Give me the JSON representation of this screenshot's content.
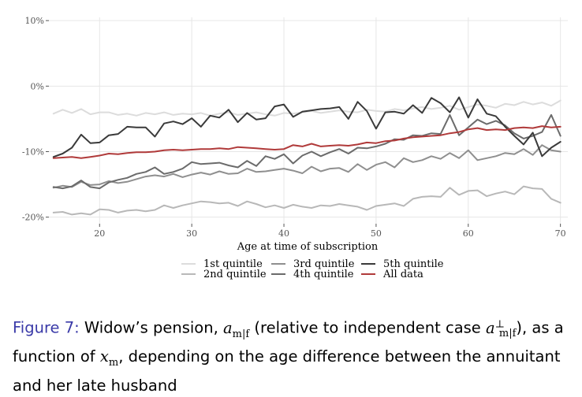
{
  "chart_data": {
    "type": "line",
    "xlabel": "Age at time of subscription",
    "ylabel": "",
    "x_ticks": [
      20,
      30,
      40,
      50,
      60,
      70
    ],
    "y_ticks": [
      10,
      0,
      -10,
      -20
    ],
    "y_tick_labels": [
      "10%",
      "0%",
      "-10%",
      "-20%"
    ],
    "xlim": [
      14.5,
      70.8
    ],
    "ylim": [
      -21,
      10.5
    ],
    "grid": true,
    "legend_position": "bottom",
    "x": [
      15,
      16,
      17,
      18,
      19,
      20,
      21,
      22,
      23,
      24,
      25,
      26,
      27,
      28,
      29,
      30,
      31,
      32,
      33,
      34,
      35,
      36,
      37,
      38,
      39,
      40,
      41,
      42,
      43,
      44,
      45,
      46,
      47,
      48,
      49,
      50,
      51,
      52,
      53,
      54,
      55,
      56,
      57,
      58,
      59,
      60,
      61,
      62,
      63,
      64,
      65,
      66,
      67,
      68,
      69,
      70
    ],
    "series": [
      {
        "name": "1st quintile",
        "color": "#dcdcdc",
        "values": [
          -4.2,
          -3.6,
          -4.1,
          -3.5,
          -4.3,
          -4.0,
          -4.0,
          -4.4,
          -4.2,
          -4.5,
          -4.1,
          -4.3,
          -4.0,
          -4.4,
          -4.2,
          -4.3,
          -4.1,
          -4.5,
          -4.2,
          -4.0,
          -4.4,
          -4.2,
          -4.0,
          -4.3,
          -4.5,
          -4.1,
          -4.2,
          -4.0,
          -3.8,
          -4.1,
          -3.9,
          -3.7,
          -3.9,
          -4.0,
          -3.6,
          -3.8,
          -3.9,
          -3.5,
          -3.7,
          -3.4,
          -3.2,
          -3.5,
          -3.3,
          -3.0,
          -3.6,
          -3.2,
          -2.8,
          -3.0,
          -3.3,
          -2.7,
          -2.9,
          -2.4,
          -2.8,
          -2.5,
          -3.0,
          -2.2
        ]
      },
      {
        "name": "2nd quintile",
        "color": "#b8b8b8",
        "values": [
          -19.3,
          -19.2,
          -19.6,
          -19.4,
          -19.6,
          -18.8,
          -18.9,
          -19.3,
          -19.0,
          -18.9,
          -19.1,
          -18.9,
          -18.2,
          -18.6,
          -18.2,
          -17.9,
          -17.6,
          -17.7,
          -17.9,
          -17.8,
          -18.3,
          -17.6,
          -18.0,
          -18.5,
          -18.2,
          -18.6,
          -18.1,
          -18.4,
          -18.6,
          -18.2,
          -18.3,
          -18.0,
          -18.2,
          -18.4,
          -18.9,
          -18.3,
          -18.1,
          -17.9,
          -18.3,
          -17.2,
          -16.9,
          -16.8,
          -16.9,
          -15.5,
          -16.6,
          -16.0,
          -15.9,
          -16.8,
          -16.4,
          -16.1,
          -16.5,
          -15.3,
          -15.6,
          -15.7,
          -17.2,
          -17.8
        ]
      },
      {
        "name": "3rd quintile",
        "color": "#8f8f8f",
        "values": [
          -15.5,
          -15.2,
          -15.4,
          -14.6,
          -15.1,
          -15.0,
          -14.5,
          -14.8,
          -14.6,
          -14.2,
          -13.8,
          -13.6,
          -13.8,
          -13.4,
          -13.9,
          -13.5,
          -13.2,
          -13.5,
          -13.0,
          -13.4,
          -13.3,
          -12.6,
          -13.1,
          -13.0,
          -12.8,
          -12.6,
          -12.9,
          -13.3,
          -12.3,
          -13.0,
          -12.6,
          -12.5,
          -13.1,
          -11.9,
          -12.8,
          -12.0,
          -11.6,
          -12.4,
          -11.0,
          -11.6,
          -11.3,
          -10.7,
          -11.1,
          -10.2,
          -11.0,
          -9.8,
          -11.3,
          -11.0,
          -10.7,
          -10.2,
          -10.4,
          -9.6,
          -10.5,
          -9.0,
          -9.8,
          -10.0
        ]
      },
      {
        "name": "4th quintile",
        "color": "#6b6b6b",
        "values": [
          -15.4,
          -15.6,
          -15.3,
          -14.4,
          -15.4,
          -15.6,
          -14.7,
          -14.3,
          -14.0,
          -13.4,
          -13.1,
          -12.4,
          -13.4,
          -13.1,
          -12.6,
          -11.6,
          -11.9,
          -11.8,
          -11.7,
          -12.1,
          -12.4,
          -11.4,
          -12.2,
          -10.7,
          -11.1,
          -10.4,
          -11.8,
          -10.6,
          -10.0,
          -10.7,
          -10.1,
          -9.6,
          -10.3,
          -9.4,
          -9.5,
          -9.2,
          -8.8,
          -8.1,
          -8.2,
          -7.5,
          -7.6,
          -7.2,
          -7.3,
          -4.4,
          -7.5,
          -6.3,
          -5.1,
          -5.8,
          -5.3,
          -6.0,
          -7.2,
          -8.0,
          -7.6,
          -7.0,
          -4.4,
          -7.6
        ]
      },
      {
        "name": "5th quintile",
        "color": "#3a3a3a",
        "values": [
          -10.8,
          -10.3,
          -9.4,
          -7.4,
          -8.7,
          -8.6,
          -7.5,
          -7.3,
          -6.2,
          -6.3,
          -6.3,
          -7.7,
          -5.7,
          -5.4,
          -5.8,
          -4.9,
          -6.2,
          -4.5,
          -4.8,
          -3.6,
          -5.5,
          -4.1,
          -5.1,
          -4.9,
          -3.1,
          -2.8,
          -4.7,
          -3.9,
          -3.7,
          -3.5,
          -3.4,
          -3.2,
          -5.0,
          -2.4,
          -3.8,
          -6.5,
          -4.0,
          -3.9,
          -4.2,
          -2.9,
          -4.1,
          -1.8,
          -2.6,
          -4.0,
          -1.7,
          -4.8,
          -2.0,
          -4.2,
          -4.6,
          -6.2,
          -7.6,
          -8.9,
          -7.1,
          -10.7,
          -9.4,
          -8.5
        ]
      },
      {
        "name": "All data",
        "color": "#b03a3a",
        "values": [
          -11.0,
          -10.9,
          -10.8,
          -11.0,
          -10.8,
          -10.6,
          -10.3,
          -10.4,
          -10.2,
          -10.1,
          -10.1,
          -10.0,
          -9.8,
          -9.7,
          -9.8,
          -9.7,
          -9.6,
          -9.6,
          -9.5,
          -9.6,
          -9.3,
          -9.4,
          -9.5,
          -9.6,
          -9.7,
          -9.6,
          -9.0,
          -9.2,
          -8.8,
          -9.2,
          -9.1,
          -9.0,
          -9.1,
          -8.9,
          -8.6,
          -8.7,
          -8.4,
          -8.3,
          -8.0,
          -7.8,
          -7.7,
          -7.6,
          -7.5,
          -7.2,
          -7.0,
          -6.6,
          -6.4,
          -6.7,
          -6.6,
          -6.7,
          -6.4,
          -6.3,
          -6.4,
          -6.1,
          -6.3,
          -6.2
        ]
      }
    ]
  },
  "caption": {
    "figure_label": "Figure 7:",
    "text_1": " Widow’s pension, ",
    "a_symbol": "a",
    "mf_sub": "m|f",
    "text_2": " (relative to independent case ",
    "perp_sup": "⊥",
    "text_3": "), as a function of ",
    "x_symbol": "x",
    "m_sub": "m",
    "text_4": ", depending on the age difference between the annuitant and her late husband"
  }
}
